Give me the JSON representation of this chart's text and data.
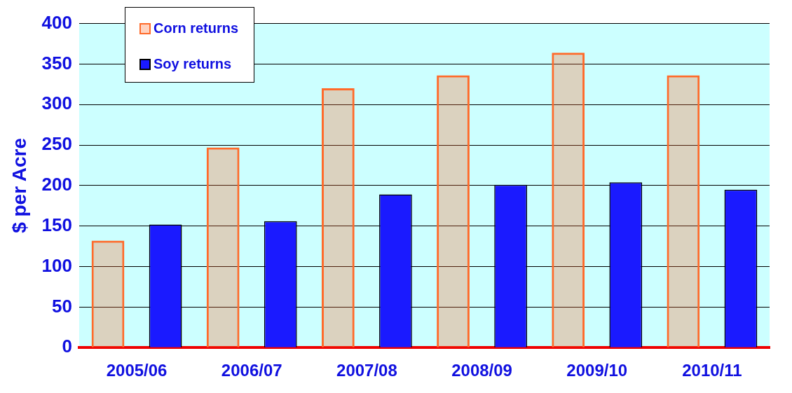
{
  "chart_data": {
    "type": "bar",
    "ylabel": "$ per Acre",
    "categories": [
      "2005/06",
      "2006/07",
      "2007/08",
      "2008/09",
      "2009/10",
      "2010/11"
    ],
    "series": [
      {
        "name": "Corn returns",
        "color": "#ff6a2a",
        "values": [
          132,
          247,
          320,
          336,
          364,
          336
        ]
      },
      {
        "name": "Soy returns",
        "color": "#1a1aff",
        "values": [
          152,
          156,
          189,
          201,
          204,
          195
        ]
      }
    ],
    "ylim": [
      0,
      400
    ],
    "yticks": [
      0,
      50,
      100,
      150,
      200,
      250,
      300,
      350,
      400
    ],
    "grid": "y",
    "legend": "top left"
  }
}
